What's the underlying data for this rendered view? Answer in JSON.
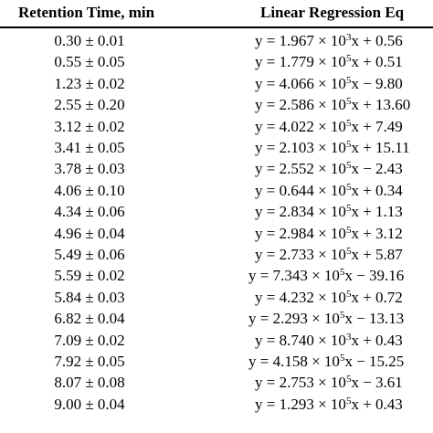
{
  "headers": {
    "retention_time": "Retention Time, min",
    "equation": "Linear Regression Eq"
  },
  "rows": [
    {
      "rt": "0.30 ± 0.01",
      "coef": "y = 1.967 × 10",
      "exp": "3",
      "rest": "x + 0.56"
    },
    {
      "rt": "0.55 ± 0.05",
      "coef": "y = 1.779 × 10",
      "exp": "5",
      "rest": "x + 0.51"
    },
    {
      "rt": "1.23 ± 0.02",
      "coef": "y = 4.066 × 10",
      "exp": "5",
      "rest": "x − 9.80"
    },
    {
      "rt": "2.55 ± 0.20",
      "coef": "y = 2.586 × 10",
      "exp": "5",
      "rest": "x + 13.60"
    },
    {
      "rt": "3.12 ± 0.02",
      "coef": "y = 4.022 × 10",
      "exp": "5",
      "rest": "x + 7.49"
    },
    {
      "rt": "3.41 ± 0.05",
      "coef": "y = 2.103 × 10",
      "exp": "5",
      "rest": "x + 15.11"
    },
    {
      "rt": "3.78 ± 0.03",
      "coef": "y = 2.552 × 10",
      "exp": "5",
      "rest": "x − 2.43"
    },
    {
      "rt": "4.06 ± 0.10",
      "coef": "y = 0.644 × 10",
      "exp": "5",
      "rest": "x + 0.34"
    },
    {
      "rt": "4.34 ± 0.06",
      "coef": "y = 2.834 × 10",
      "exp": "5",
      "rest": "x + 1.13"
    },
    {
      "rt": "4.96 ± 0.04",
      "coef": "y = 2.984 × 10",
      "exp": "5",
      "rest": "x + 3.12"
    },
    {
      "rt": "5.49 ± 0.06",
      "coef": "y = 2.733 × 10",
      "exp": "5",
      "rest": "x + 5.87"
    },
    {
      "rt": "5.59 ± 0.02",
      "coef": "y = 7.343 × 10",
      "exp": "5",
      "rest": "x − 39.16"
    },
    {
      "rt": "5.84 ± 0.03",
      "coef": "y = 4.232 × 10",
      "exp": "5",
      "rest": "x + 0.72"
    },
    {
      "rt": "6.82 ± 0.04",
      "coef": "y = 2.293 × 10",
      "exp": "5",
      "rest": "x − 13.13"
    },
    {
      "rt": "7.09 ± 0.02",
      "coef": "y = 8.740 × 10",
      "exp": "3",
      "rest": "x + 0.43"
    },
    {
      "rt": "7.92 ± 0.05",
      "coef": "y = 4.158 × 10",
      "exp": "5",
      "rest": "x − 15.25"
    },
    {
      "rt": "8.07 ± 0.08",
      "coef": "y = 2.753 × 10",
      "exp": "5",
      "rest": "x − 3.61"
    },
    {
      "rt": "9.00 ± 0.04",
      "coef": "y = 1.293 × 10",
      "exp": "5",
      "rest": "x + 0.43"
    }
  ]
}
